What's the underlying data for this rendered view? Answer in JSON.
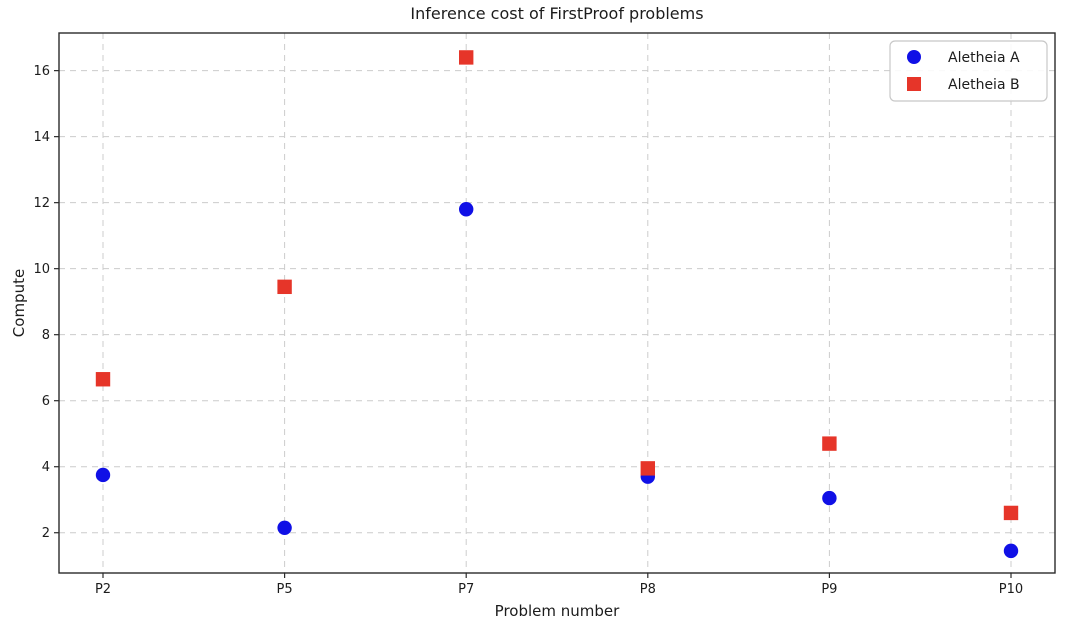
{
  "figure": {
    "title": "Inference cost of FirstProof problems",
    "xlabel": "Problem number",
    "ylabel": "Compute"
  },
  "chart_data": {
    "type": "scatter",
    "title": "Inference cost of FirstProof problems",
    "xlabel": "Problem number",
    "ylabel": "Compute",
    "categories": [
      "P2",
      "P5",
      "P7",
      "P8",
      "P9",
      "P10"
    ],
    "series": [
      {
        "name": "Aletheia A",
        "marker": "circle",
        "color": "#1010e6",
        "values": [
          3.75,
          2.15,
          11.8,
          3.7,
          3.05,
          1.45
        ]
      },
      {
        "name": "Aletheia B",
        "marker": "square",
        "color": "#e63529",
        "values": [
          6.65,
          9.45,
          16.4,
          3.95,
          4.7,
          2.6
        ]
      }
    ],
    "yticks": [
      2,
      4,
      6,
      8,
      10,
      12,
      14,
      16
    ],
    "ylim": [
      0.78,
      17.14
    ],
    "grid": true,
    "grid_style": "dashed",
    "grid_color": "#cccccc",
    "axis_color": "#2b2b2b",
    "text_color": "#1c1c1c",
    "background": "#ffffff",
    "legend_position": "upper right"
  }
}
